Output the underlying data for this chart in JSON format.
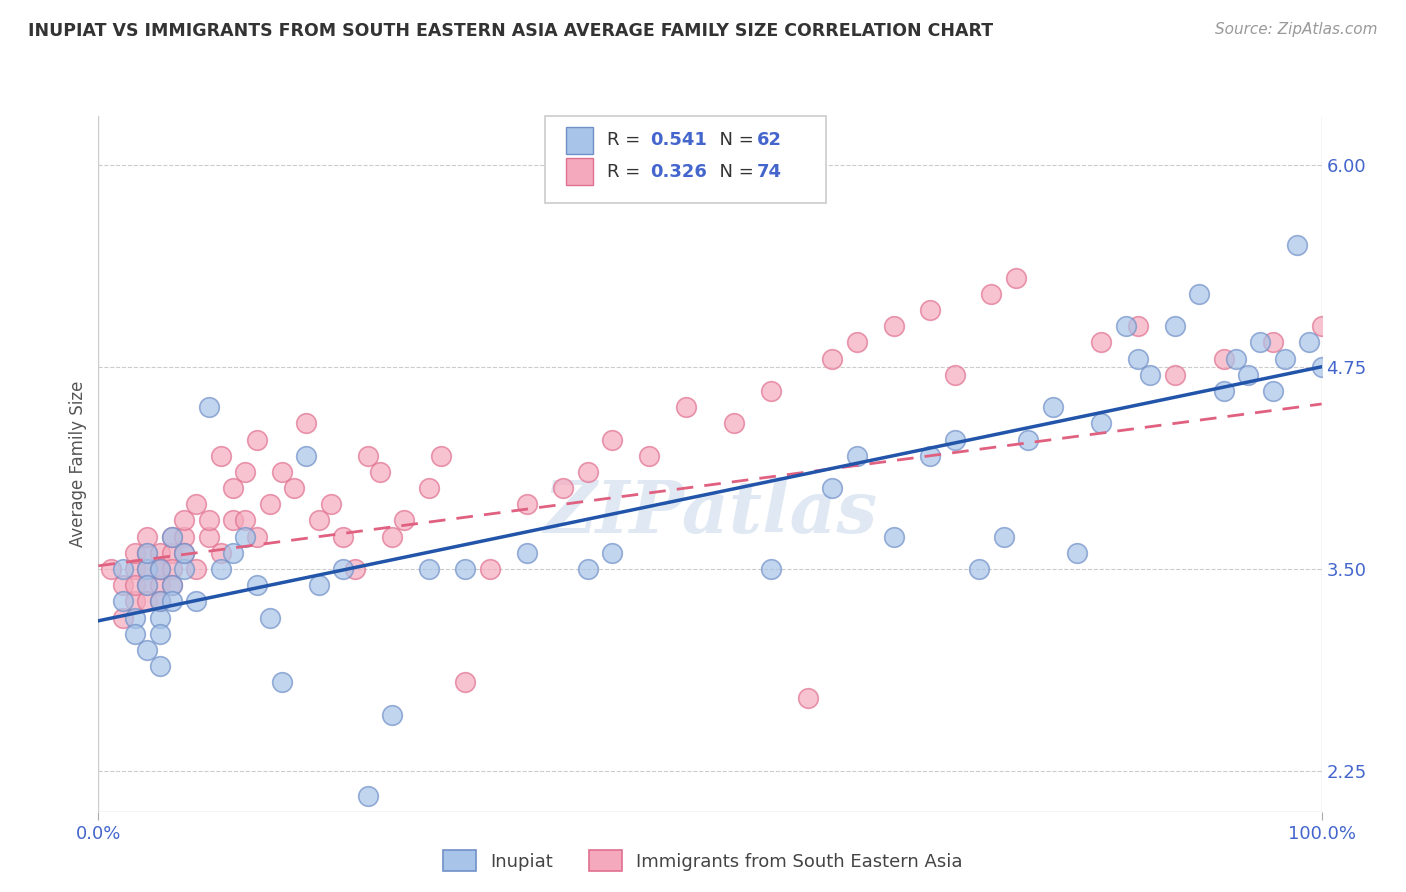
{
  "title": "INUPIAT VS IMMIGRANTS FROM SOUTH EASTERN ASIA AVERAGE FAMILY SIZE CORRELATION CHART",
  "source": "Source: ZipAtlas.com",
  "ylabel": "Average Family Size",
  "xlim": [
    0.0,
    1.0
  ],
  "ylim": [
    2.0,
    6.3
  ],
  "yticks": [
    2.25,
    3.5,
    4.75,
    6.0
  ],
  "ytick_labels": [
    "2.25",
    "3.50",
    "4.75",
    "6.00"
  ],
  "watermark": "ZIPatlas",
  "blue_color": "#a8c4e8",
  "pink_color": "#f4aabc",
  "blue_edge_color": "#7090c8",
  "pink_edge_color": "#e07090",
  "blue_line_color": "#2255aa",
  "pink_line_color": "#e06080",
  "text_color": "#4466cc",
  "background_color": "#ffffff",
  "grid_color": "#cccccc",
  "blue_line_x0": 0.0,
  "blue_line_y0": 3.18,
  "blue_line_x1": 1.0,
  "blue_line_y1": 4.75,
  "pink_line_x0": 0.0,
  "pink_line_y0": 3.52,
  "pink_line_x1": 1.0,
  "pink_line_y1": 4.52,
  "inupiat_x": [
    0.02,
    0.02,
    0.03,
    0.03,
    0.04,
    0.04,
    0.04,
    0.04,
    0.05,
    0.05,
    0.05,
    0.05,
    0.05,
    0.06,
    0.06,
    0.06,
    0.07,
    0.07,
    0.08,
    0.09,
    0.1,
    0.11,
    0.12,
    0.13,
    0.14,
    0.15,
    0.17,
    0.18,
    0.2,
    0.22,
    0.24,
    0.27,
    0.3,
    0.35,
    0.4,
    0.42,
    0.55,
    0.6,
    0.62,
    0.65,
    0.68,
    0.7,
    0.72,
    0.74,
    0.76,
    0.78,
    0.8,
    0.82,
    0.84,
    0.85,
    0.86,
    0.88,
    0.9,
    0.92,
    0.93,
    0.94,
    0.95,
    0.96,
    0.97,
    0.98,
    0.99,
    1.0
  ],
  "inupiat_y": [
    3.3,
    3.5,
    3.2,
    3.1,
    3.0,
    3.5,
    3.4,
    3.6,
    3.2,
    3.3,
    3.1,
    2.9,
    3.5,
    3.4,
    3.3,
    3.7,
    3.5,
    3.6,
    3.3,
    4.5,
    3.5,
    3.6,
    3.7,
    3.4,
    3.2,
    2.8,
    4.2,
    3.4,
    3.5,
    2.1,
    2.6,
    3.5,
    3.5,
    3.6,
    3.5,
    3.6,
    3.5,
    4.0,
    4.2,
    3.7,
    4.2,
    4.3,
    3.5,
    3.7,
    4.3,
    4.5,
    3.6,
    4.4,
    5.0,
    4.8,
    4.7,
    5.0,
    5.2,
    4.6,
    4.8,
    4.7,
    4.9,
    4.6,
    4.8,
    5.5,
    4.9,
    4.75
  ],
  "sea_x": [
    0.01,
    0.02,
    0.02,
    0.03,
    0.03,
    0.03,
    0.03,
    0.04,
    0.04,
    0.04,
    0.04,
    0.04,
    0.05,
    0.05,
    0.05,
    0.05,
    0.05,
    0.06,
    0.06,
    0.06,
    0.06,
    0.07,
    0.07,
    0.07,
    0.08,
    0.08,
    0.09,
    0.09,
    0.1,
    0.1,
    0.11,
    0.11,
    0.12,
    0.12,
    0.13,
    0.13,
    0.14,
    0.15,
    0.16,
    0.17,
    0.18,
    0.19,
    0.2,
    0.21,
    0.22,
    0.23,
    0.24,
    0.25,
    0.27,
    0.28,
    0.3,
    0.32,
    0.35,
    0.38,
    0.4,
    0.42,
    0.45,
    0.48,
    0.52,
    0.55,
    0.58,
    0.6,
    0.62,
    0.65,
    0.68,
    0.7,
    0.73,
    0.75,
    0.82,
    0.85,
    0.88,
    0.92,
    0.96,
    1.0
  ],
  "sea_y": [
    3.5,
    3.4,
    3.2,
    3.5,
    3.3,
    3.6,
    3.4,
    3.5,
    3.6,
    3.4,
    3.3,
    3.7,
    3.5,
    3.4,
    3.6,
    3.5,
    3.3,
    3.6,
    3.7,
    3.5,
    3.4,
    3.7,
    3.8,
    3.6,
    3.5,
    3.9,
    3.7,
    3.8,
    3.6,
    4.2,
    3.8,
    4.0,
    4.1,
    3.8,
    3.7,
    4.3,
    3.9,
    4.1,
    4.0,
    4.4,
    3.8,
    3.9,
    3.7,
    3.5,
    4.2,
    4.1,
    3.7,
    3.8,
    4.0,
    4.2,
    2.8,
    3.5,
    3.9,
    4.0,
    4.1,
    4.3,
    4.2,
    4.5,
    4.4,
    4.6,
    2.7,
    4.8,
    4.9,
    5.0,
    5.1,
    4.7,
    5.2,
    5.3,
    4.9,
    5.0,
    4.7,
    4.8,
    4.9,
    5.0
  ]
}
